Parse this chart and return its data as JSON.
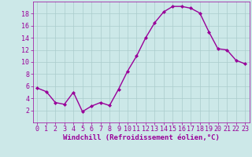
{
  "x": [
    0,
    1,
    2,
    3,
    4,
    5,
    6,
    7,
    8,
    9,
    10,
    11,
    12,
    13,
    14,
    15,
    16,
    17,
    18,
    19,
    20,
    21,
    22,
    23
  ],
  "y": [
    5.7,
    5.1,
    3.3,
    3.0,
    5.0,
    1.8,
    2.7,
    3.3,
    2.8,
    5.5,
    8.5,
    11.0,
    14.0,
    16.5,
    18.3,
    19.2,
    19.2,
    18.9,
    18.1,
    15.0,
    12.2,
    12.0,
    10.3,
    9.7
  ],
  "line_color": "#990099",
  "marker": "D",
  "marker_size": 2.0,
  "line_width": 1.0,
  "background_color": "#cce8e8",
  "grid_color": "#aacccc",
  "xlabel": "Windchill (Refroidissement éolien,°C)",
  "xlabel_color": "#990099",
  "xlabel_fontsize": 6.5,
  "tick_color": "#990099",
  "tick_fontsize": 6.0,
  "ylim": [
    0,
    20
  ],
  "yticks": [
    2,
    4,
    6,
    8,
    10,
    12,
    14,
    16,
    18
  ],
  "ytick_labels": [
    "2",
    "4",
    "6",
    "8",
    "10",
    "12",
    "14",
    "16",
    "18"
  ],
  "xlim": [
    -0.5,
    23.5
  ],
  "xticks": [
    0,
    1,
    2,
    3,
    4,
    5,
    6,
    7,
    8,
    9,
    10,
    11,
    12,
    13,
    14,
    15,
    16,
    17,
    18,
    19,
    20,
    21,
    22,
    23
  ],
  "xtick_labels": [
    "0",
    "1",
    "2",
    "3",
    "4",
    "5",
    "6",
    "7",
    "8",
    "9",
    "10",
    "11",
    "12",
    "13",
    "14",
    "15",
    "16",
    "17",
    "18",
    "19",
    "20",
    "21",
    "22",
    "23"
  ]
}
